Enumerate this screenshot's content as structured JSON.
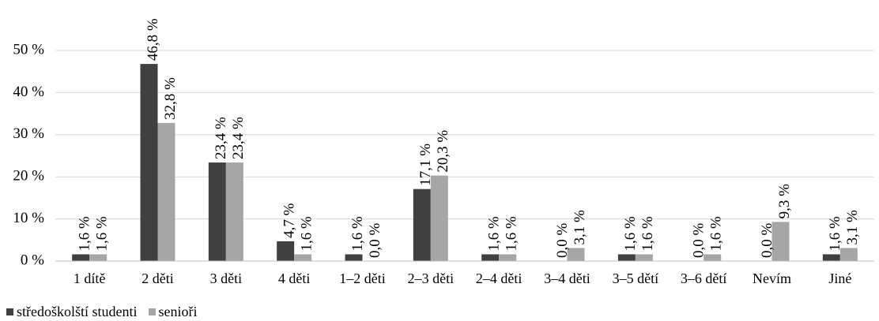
{
  "chart_data": {
    "type": "bar",
    "categories": [
      "1 dítě",
      "2 děti",
      "3 děti",
      "4 děti",
      "1–2 děti",
      "2–3 děti",
      "2–4 děti",
      "3–4 děti",
      "3–5 dětí",
      "3–6 dětí",
      "Nevím",
      "Jiné"
    ],
    "series": [
      {
        "name": "středoškolští studenti",
        "color": "#404040",
        "values": [
          1.6,
          46.8,
          23.4,
          4.7,
          1.6,
          17.1,
          1.6,
          0.0,
          1.6,
          0.0,
          0.0,
          1.6
        ],
        "labels": [
          "1,6 %",
          "46,8 %",
          "23,4 %",
          "4,7 %",
          "1,6 %",
          "17,1 %",
          "1,6 %",
          "0,0 %",
          "1,6 %",
          "0,0 %",
          "0,0 %",
          "1,6 %"
        ]
      },
      {
        "name": "senioři",
        "color": "#a6a6a6",
        "values": [
          1.6,
          32.8,
          23.4,
          1.6,
          0.0,
          20.3,
          1.6,
          3.1,
          1.6,
          1.6,
          9.3,
          3.1
        ],
        "labels": [
          "1,6 %",
          "32,8 %",
          "23,4 %",
          "1,6 %",
          "0,0 %",
          "20,3 %",
          "1,6 %",
          "3,1 %",
          "1,6 %",
          "1,6 %",
          "9,3 %",
          "3,1 %"
        ]
      }
    ],
    "yticks": [
      0,
      10,
      20,
      30,
      40,
      50
    ],
    "ytick_labels": [
      "0 %",
      "10 %",
      "20 %",
      "30 %",
      "40 %",
      "50 %"
    ],
    "ylim": [
      0,
      50
    ],
    "grid": true,
    "legend_position": "bottom-left"
  }
}
